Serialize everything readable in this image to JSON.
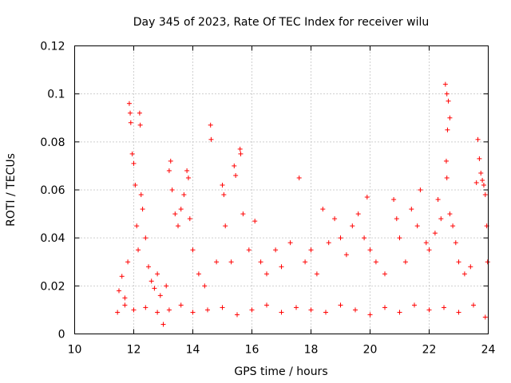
{
  "chart_data": {
    "type": "scatter",
    "title": "Day 345 of 2023, Rate Of TEC Index for receiver wilu",
    "xlabel": "GPS time / hours",
    "ylabel": "ROTI / TECUs",
    "xlim": [
      10,
      24
    ],
    "ylim": [
      0,
      0.12
    ],
    "xticks": [
      10,
      12,
      14,
      16,
      18,
      20,
      22,
      24
    ],
    "xtick_labels": [
      "10",
      "12",
      "14",
      "16",
      "18",
      "20",
      "22",
      "24"
    ],
    "yticks": [
      0,
      0.02,
      0.04,
      0.06,
      0.08,
      0.1,
      0.12
    ],
    "ytick_labels": [
      "0",
      "0.02",
      "0.04",
      "0.06",
      "0.08",
      "0.1",
      "0.12"
    ],
    "grid": true,
    "marker": "+",
    "color": "#ff0000",
    "series": [
      {
        "name": "ROTI",
        "points": [
          [
            11.5,
            0.018
          ],
          [
            11.6,
            0.024
          ],
          [
            11.7,
            0.015
          ],
          [
            11.8,
            0.03
          ],
          [
            11.85,
            0.096
          ],
          [
            11.88,
            0.092
          ],
          [
            11.9,
            0.088
          ],
          [
            11.95,
            0.075
          ],
          [
            12.0,
            0.071
          ],
          [
            12.05,
            0.062
          ],
          [
            12.1,
            0.045
          ],
          [
            12.15,
            0.035
          ],
          [
            12.2,
            0.092
          ],
          [
            12.22,
            0.087
          ],
          [
            12.25,
            0.058
          ],
          [
            12.3,
            0.052
          ],
          [
            12.4,
            0.04
          ],
          [
            12.5,
            0.028
          ],
          [
            12.6,
            0.022
          ],
          [
            12.7,
            0.019
          ],
          [
            12.8,
            0.025
          ],
          [
            12.9,
            0.016
          ],
          [
            13.0,
            0.004
          ],
          [
            13.1,
            0.02
          ],
          [
            13.2,
            0.068
          ],
          [
            13.25,
            0.072
          ],
          [
            13.3,
            0.06
          ],
          [
            13.4,
            0.05
          ],
          [
            13.5,
            0.045
          ],
          [
            13.6,
            0.052
          ],
          [
            13.7,
            0.058
          ],
          [
            13.8,
            0.068
          ],
          [
            13.85,
            0.065
          ],
          [
            13.9,
            0.048
          ],
          [
            14.0,
            0.035
          ],
          [
            14.2,
            0.025
          ],
          [
            14.4,
            0.02
          ],
          [
            14.6,
            0.087
          ],
          [
            14.62,
            0.081
          ],
          [
            14.8,
            0.03
          ],
          [
            15.0,
            0.062
          ],
          [
            15.05,
            0.058
          ],
          [
            15.1,
            0.045
          ],
          [
            15.3,
            0.03
          ],
          [
            15.4,
            0.07
          ],
          [
            15.45,
            0.066
          ],
          [
            15.6,
            0.077
          ],
          [
            15.62,
            0.075
          ],
          [
            15.7,
            0.05
          ],
          [
            15.9,
            0.035
          ],
          [
            16.1,
            0.047
          ],
          [
            16.3,
            0.03
          ],
          [
            16.5,
            0.025
          ],
          [
            16.8,
            0.035
          ],
          [
            17.0,
            0.028
          ],
          [
            17.3,
            0.038
          ],
          [
            17.6,
            0.065
          ],
          [
            17.8,
            0.03
          ],
          [
            18.0,
            0.035
          ],
          [
            18.2,
            0.025
          ],
          [
            18.4,
            0.052
          ],
          [
            18.6,
            0.038
          ],
          [
            18.8,
            0.048
          ],
          [
            19.0,
            0.04
          ],
          [
            19.2,
            0.033
          ],
          [
            19.4,
            0.045
          ],
          [
            19.6,
            0.05
          ],
          [
            19.8,
            0.04
          ],
          [
            19.9,
            0.057
          ],
          [
            20.0,
            0.035
          ],
          [
            20.2,
            0.03
          ],
          [
            20.5,
            0.025
          ],
          [
            20.8,
            0.056
          ],
          [
            20.9,
            0.048
          ],
          [
            21.0,
            0.04
          ],
          [
            21.2,
            0.03
          ],
          [
            21.4,
            0.052
          ],
          [
            21.6,
            0.045
          ],
          [
            21.7,
            0.06
          ],
          [
            21.9,
            0.038
          ],
          [
            22.0,
            0.035
          ],
          [
            22.2,
            0.042
          ],
          [
            22.3,
            0.056
          ],
          [
            22.4,
            0.048
          ],
          [
            22.55,
            0.104
          ],
          [
            22.6,
            0.1
          ],
          [
            22.65,
            0.097
          ],
          [
            22.7,
            0.09
          ],
          [
            22.62,
            0.085
          ],
          [
            22.58,
            0.072
          ],
          [
            22.6,
            0.065
          ],
          [
            22.7,
            0.05
          ],
          [
            22.8,
            0.045
          ],
          [
            22.9,
            0.038
          ],
          [
            23.0,
            0.03
          ],
          [
            23.2,
            0.025
          ],
          [
            23.4,
            0.028
          ],
          [
            23.6,
            0.063
          ],
          [
            23.65,
            0.081
          ],
          [
            23.7,
            0.073
          ],
          [
            23.75,
            0.067
          ],
          [
            23.8,
            0.064
          ],
          [
            23.85,
            0.062
          ],
          [
            23.9,
            0.058
          ],
          [
            23.95,
            0.045
          ],
          [
            23.98,
            0.03
          ],
          [
            11.45,
            0.009
          ],
          [
            11.7,
            0.012
          ],
          [
            12.0,
            0.01
          ],
          [
            12.4,
            0.011
          ],
          [
            12.8,
            0.009
          ],
          [
            13.2,
            0.01
          ],
          [
            13.6,
            0.012
          ],
          [
            14.0,
            0.009
          ],
          [
            14.5,
            0.01
          ],
          [
            15.0,
            0.011
          ],
          [
            15.5,
            0.008
          ],
          [
            16.0,
            0.01
          ],
          [
            16.5,
            0.012
          ],
          [
            17.0,
            0.009
          ],
          [
            17.5,
            0.011
          ],
          [
            18.0,
            0.01
          ],
          [
            18.5,
            0.009
          ],
          [
            19.0,
            0.012
          ],
          [
            19.5,
            0.01
          ],
          [
            20.0,
            0.008
          ],
          [
            20.5,
            0.011
          ],
          [
            21.0,
            0.009
          ],
          [
            21.5,
            0.012
          ],
          [
            22.0,
            0.01
          ],
          [
            22.5,
            0.011
          ],
          [
            23.0,
            0.009
          ],
          [
            23.5,
            0.012
          ],
          [
            23.9,
            0.007
          ]
        ]
      }
    ]
  }
}
